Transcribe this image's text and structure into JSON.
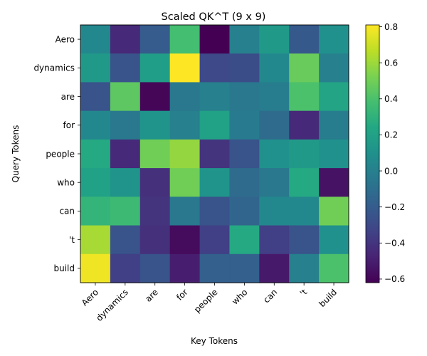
{
  "chart_data": {
    "type": "heatmap",
    "title": "Scaled QK^T (9 x 9)",
    "xlabel": "Key Tokens",
    "ylabel": "Query Tokens",
    "x_categories": [
      "Aero",
      "dynamics",
      "are",
      "for",
      "people",
      "who",
      "can",
      "'t",
      "build"
    ],
    "y_categories": [
      "Aero",
      "dynamics",
      "are",
      "for",
      "people",
      "who",
      "can",
      "'t",
      "build"
    ],
    "colormap": "viridis",
    "vmin": -0.62,
    "vmax": 0.81,
    "colorbar_ticks": [
      -0.6,
      -0.4,
      -0.2,
      0.0,
      0.2,
      0.4,
      0.6,
      0.8
    ],
    "colorbar_tick_labels": [
      "−0.6",
      "−0.4",
      "−0.2",
      "0.0",
      "0.2",
      "0.4",
      "0.6",
      "0.8"
    ],
    "x_tick_rotation": 45,
    "values": [
      [
        0.05,
        -0.45,
        -0.2,
        0.38,
        -0.62,
        0.0,
        0.15,
        -0.22,
        0.1
      ],
      [
        0.15,
        -0.25,
        0.18,
        0.81,
        -0.3,
        -0.28,
        0.05,
        0.48,
        0.0
      ],
      [
        -0.25,
        0.45,
        -0.6,
        -0.05,
        0.0,
        -0.05,
        -0.02,
        0.4,
        0.22
      ],
      [
        0.05,
        -0.05,
        0.12,
        0.0,
        0.2,
        -0.03,
        -0.12,
        -0.45,
        -0.02
      ],
      [
        0.25,
        -0.45,
        0.5,
        0.58,
        -0.4,
        -0.25,
        0.1,
        0.15,
        0.1
      ],
      [
        0.2,
        0.12,
        -0.42,
        0.5,
        0.12,
        -0.12,
        -0.05,
        0.25,
        -0.55
      ],
      [
        0.32,
        0.35,
        -0.4,
        -0.05,
        -0.25,
        -0.15,
        0.05,
        0.05,
        0.5
      ],
      [
        0.62,
        -0.25,
        -0.42,
        -0.58,
        -0.35,
        0.25,
        -0.35,
        -0.25,
        0.1
      ],
      [
        0.78,
        -0.35,
        -0.25,
        -0.5,
        -0.18,
        -0.18,
        -0.52,
        0.0,
        0.4
      ]
    ]
  }
}
